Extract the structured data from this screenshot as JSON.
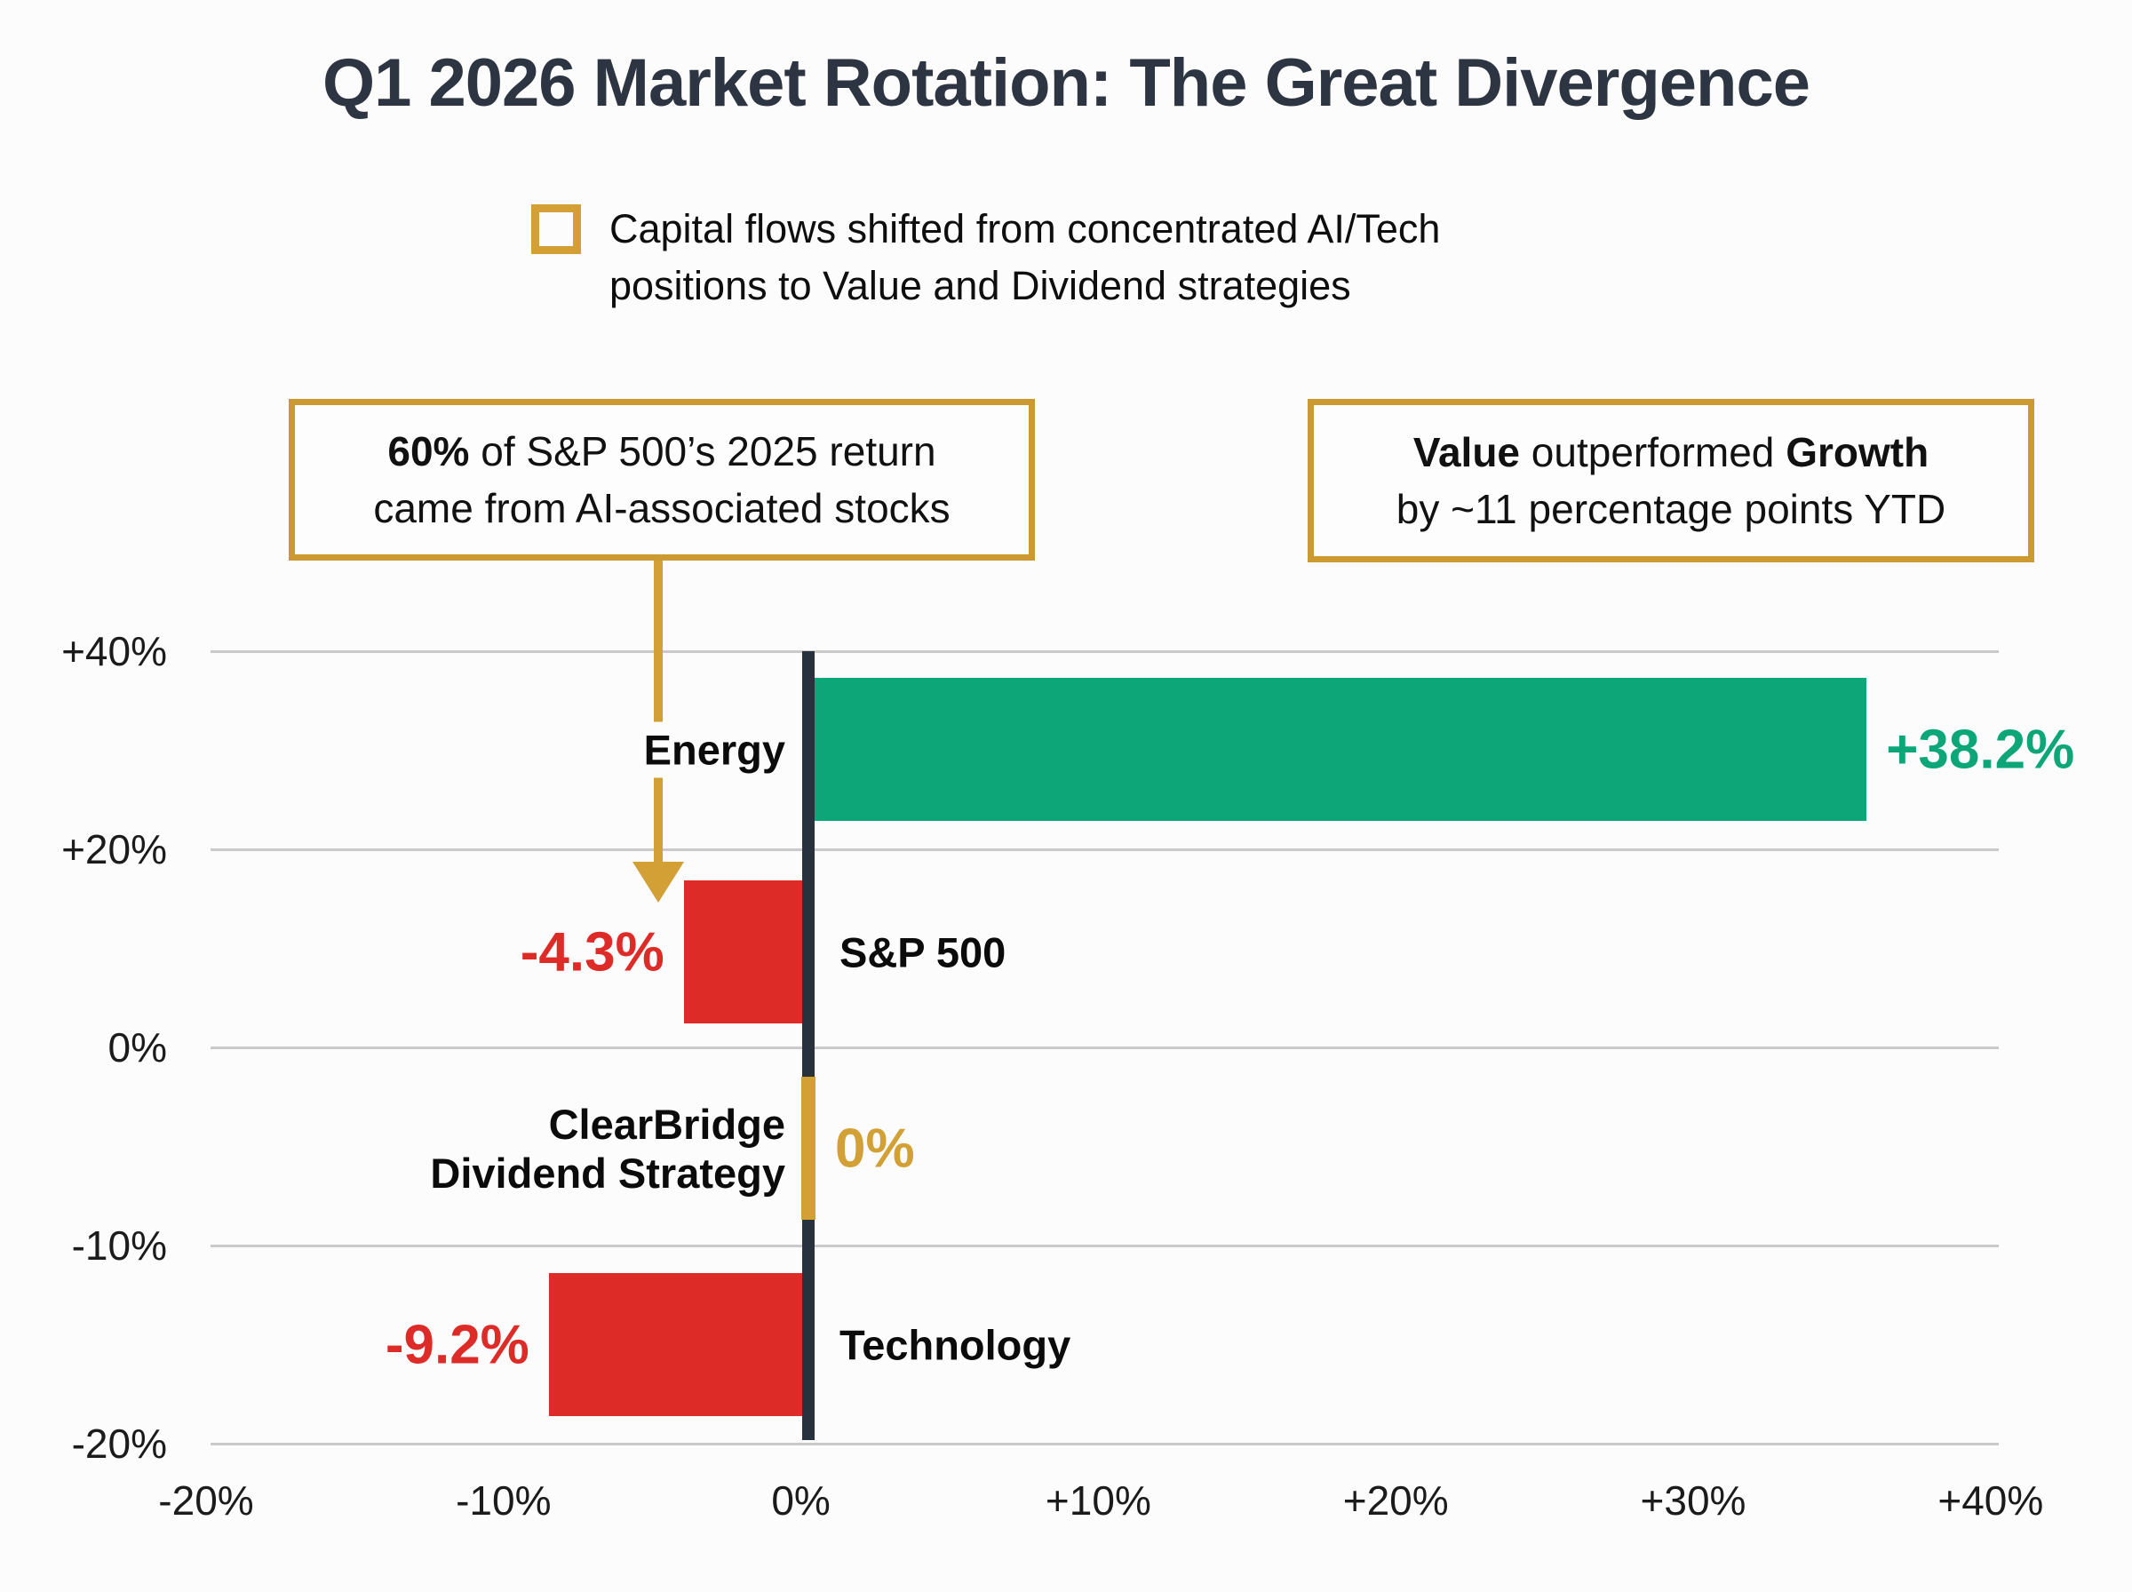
{
  "title": "Q1 2026 Market Rotation: The Great Divergence",
  "subtitle": {
    "icon": "gold-outline-square-icon",
    "text": "Capital flows shifted from concentrated AI/Tech\npositions to Value and Dividend strategies"
  },
  "callouts": {
    "ai": {
      "bold": "60%",
      "line1_rest": " of S&P 500’s 2025 return",
      "line2": "came from AI-associated stocks"
    },
    "value_growth": {
      "bold1": "Value",
      "mid": " outperformed ",
      "bold2": "Growth",
      "line2": "by ~11 percentage points YTD"
    }
  },
  "colors": {
    "positive_green": "#0CA678",
    "negative_red": "#DD2B27",
    "accent_gold": "#D2A035",
    "axis_navy": "#28313E",
    "title_navy": "#2C3541",
    "gridline_gray": "#CACACA"
  },
  "chart_data": {
    "type": "bar",
    "orientation": "horizontal",
    "title": "Q1 2026 Market Rotation: The Great Divergence",
    "xlim": [
      -20,
      40
    ],
    "grid": true,
    "rows": [
      {
        "label": "Energy",
        "value": 38.2,
        "value_label": "+38.2%",
        "color": "#0CA678"
      },
      {
        "label": "S&P 500",
        "value": -4.3,
        "value_label": "-4.3%",
        "color": "#DD2B27"
      },
      {
        "label": "ClearBridge\nDividend Strategy",
        "value": 0,
        "value_label": "0%",
        "color": "#D2A035"
      },
      {
        "label": "Technology",
        "value": -9.2,
        "value_label": "-9.2%",
        "color": "#DD2B27"
      }
    ],
    "x_ticks": [
      "-20%",
      "-10%",
      "0%",
      "+10%",
      "+20%",
      "+30%",
      "+40%"
    ],
    "y_ticks": [
      "+40%",
      "+20%",
      "0%",
      "-10%",
      "-20%"
    ]
  }
}
